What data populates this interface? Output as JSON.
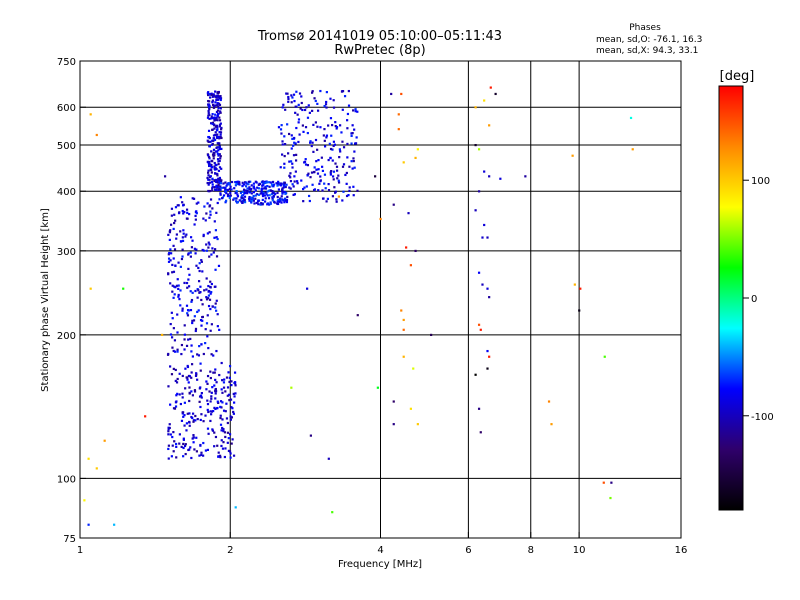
{
  "header": {
    "title": "Tromsø 20141019 05:10:00–05:11:43",
    "subtitle": "RwPretec (8p)"
  },
  "phase_box": {
    "heading": "Phases",
    "line_o": "mean, sd,O: -76.1, 16.3",
    "line_x": "mean, sd,X:  94.3, 33.1"
  },
  "colorbar": {
    "label": "[deg]",
    "range": [
      -180,
      180
    ],
    "ticks": [
      {
        "value": 100,
        "label": "100"
      },
      {
        "value": 0,
        "label": "0"
      },
      {
        "value": -100,
        "label": "-100"
      }
    ],
    "colors": [
      "#000000",
      "#2f006b",
      "#0000ff",
      "#00ffff",
      "#00ff00",
      "#ffff00",
      "#ff8800",
      "#ff0000"
    ]
  },
  "chart_data": {
    "type": "scatter",
    "title": "Tromsø 20141019 05:10:00–05:11:43",
    "subtitle": "RwPretec (8p)",
    "xlabel": "Frequency [MHz]",
    "ylabel": "Stationary phase Virtual Height [km]",
    "x_scale": "log",
    "y_scale": "log",
    "xlim": [
      1,
      16
    ],
    "ylim": [
      75,
      750
    ],
    "xticks": [
      1,
      2,
      4,
      6,
      8,
      10,
      16
    ],
    "xtick_labels": [
      "1",
      "2",
      "4",
      "6",
      "8",
      "10",
      "16"
    ],
    "yticks": [
      75,
      100,
      200,
      300,
      400,
      500,
      600,
      750
    ],
    "ytick_labels": [
      "75",
      "100",
      "200",
      "300",
      "400",
      "500",
      "600",
      "750"
    ],
    "xgrid": [
      2,
      4,
      6,
      8,
      10
    ],
    "ygrid": [
      100,
      200,
      300,
      400,
      500,
      600
    ],
    "echo_traces": [
      {
        "desc": "low-height band",
        "x_range": [
          1.5,
          2.05
        ],
        "y_range": [
          110,
          175
        ],
        "phase": -95
      },
      {
        "desc": "rising O-trace",
        "x_range": [
          1.5,
          1.9
        ],
        "y_range": [
          180,
          390
        ],
        "phase": -90
      },
      {
        "desc": "upper spike",
        "x_range": [
          1.8,
          1.92
        ],
        "y_range": [
          400,
          650
        ],
        "phase": -95
      },
      {
        "desc": "F-layer cusp",
        "x_range": [
          1.9,
          2.6
        ],
        "y_range": [
          375,
          420
        ],
        "phase": -80
      },
      {
        "desc": "rising F trace",
        "x_range": [
          2.5,
          3.6
        ],
        "y_range": [
          380,
          650
        ],
        "phase": -90
      }
    ],
    "scattered_points": [
      {
        "x": 1.05,
        "y": 580,
        "phase": 110
      },
      {
        "x": 1.08,
        "y": 525,
        "phase": 130
      },
      {
        "x": 1.05,
        "y": 250,
        "phase": 100
      },
      {
        "x": 1.22,
        "y": 250,
        "phase": 30
      },
      {
        "x": 1.35,
        "y": 135,
        "phase": 170
      },
      {
        "x": 1.12,
        "y": 120,
        "phase": 120
      },
      {
        "x": 1.04,
        "y": 110,
        "phase": 90
      },
      {
        "x": 1.08,
        "y": 105,
        "phase": 100
      },
      {
        "x": 1.02,
        "y": 90,
        "phase": 80
      },
      {
        "x": 1.04,
        "y": 80,
        "phase": -70
      },
      {
        "x": 1.17,
        "y": 80,
        "phase": -40
      },
      {
        "x": 1.46,
        "y": 200,
        "phase": 110
      },
      {
        "x": 1.48,
        "y": 430,
        "phase": -110
      },
      {
        "x": 2.05,
        "y": 87,
        "phase": -40
      },
      {
        "x": 2.65,
        "y": 155,
        "phase": 60
      },
      {
        "x": 2.9,
        "y": 123,
        "phase": -120
      },
      {
        "x": 3.15,
        "y": 110,
        "phase": -100
      },
      {
        "x": 3.2,
        "y": 85,
        "phase": 40
      },
      {
        "x": 2.85,
        "y": 250,
        "phase": -90
      },
      {
        "x": 3.6,
        "y": 220,
        "phase": -130
      },
      {
        "x": 3.3,
        "y": 390,
        "phase": 120
      },
      {
        "x": 3.9,
        "y": 430,
        "phase": -150
      },
      {
        "x": 4.0,
        "y": 350,
        "phase": 130
      },
      {
        "x": 3.95,
        "y": 155,
        "phase": 20
      },
      {
        "x": 4.2,
        "y": 640,
        "phase": -110
      },
      {
        "x": 4.4,
        "y": 640,
        "phase": 150
      },
      {
        "x": 4.35,
        "y": 580,
        "phase": 140
      },
      {
        "x": 4.35,
        "y": 540,
        "phase": 140
      },
      {
        "x": 4.45,
        "y": 460,
        "phase": 100
      },
      {
        "x": 4.75,
        "y": 490,
        "phase": 80
      },
      {
        "x": 4.7,
        "y": 470,
        "phase": 110
      },
      {
        "x": 4.25,
        "y": 375,
        "phase": -120
      },
      {
        "x": 4.55,
        "y": 360,
        "phase": -100
      },
      {
        "x": 4.5,
        "y": 305,
        "phase": 170
      },
      {
        "x": 4.7,
        "y": 300,
        "phase": -130
      },
      {
        "x": 4.6,
        "y": 280,
        "phase": 150
      },
      {
        "x": 4.4,
        "y": 225,
        "phase": 130
      },
      {
        "x": 4.45,
        "y": 215,
        "phase": 120
      },
      {
        "x": 4.45,
        "y": 205,
        "phase": 140
      },
      {
        "x": 5.05,
        "y": 200,
        "phase": -140
      },
      {
        "x": 4.45,
        "y": 180,
        "phase": 110
      },
      {
        "x": 4.65,
        "y": 170,
        "phase": 70
      },
      {
        "x": 4.6,
        "y": 140,
        "phase": 90
      },
      {
        "x": 4.25,
        "y": 145,
        "phase": -130
      },
      {
        "x": 4.25,
        "y": 130,
        "phase": -120
      },
      {
        "x": 4.75,
        "y": 130,
        "phase": 100
      },
      {
        "x": 6.2,
        "y": 600,
        "phase": 110
      },
      {
        "x": 6.45,
        "y": 620,
        "phase": 90
      },
      {
        "x": 6.65,
        "y": 660,
        "phase": 170
      },
      {
        "x": 6.8,
        "y": 640,
        "phase": -160
      },
      {
        "x": 6.6,
        "y": 550,
        "phase": 120
      },
      {
        "x": 6.2,
        "y": 500,
        "phase": -160
      },
      {
        "x": 6.3,
        "y": 490,
        "phase": 60
      },
      {
        "x": 6.45,
        "y": 440,
        "phase": -90
      },
      {
        "x": 6.6,
        "y": 430,
        "phase": -100
      },
      {
        "x": 6.95,
        "y": 425,
        "phase": -90
      },
      {
        "x": 6.3,
        "y": 400,
        "phase": -110
      },
      {
        "x": 6.2,
        "y": 365,
        "phase": -100
      },
      {
        "x": 6.45,
        "y": 340,
        "phase": -90
      },
      {
        "x": 6.4,
        "y": 320,
        "phase": -95
      },
      {
        "x": 6.55,
        "y": 320,
        "phase": -100
      },
      {
        "x": 6.3,
        "y": 270,
        "phase": -80
      },
      {
        "x": 6.4,
        "y": 255,
        "phase": -100
      },
      {
        "x": 6.55,
        "y": 250,
        "phase": -90
      },
      {
        "x": 6.6,
        "y": 240,
        "phase": -110
      },
      {
        "x": 6.3,
        "y": 210,
        "phase": 150
      },
      {
        "x": 6.35,
        "y": 205,
        "phase": 170
      },
      {
        "x": 6.55,
        "y": 185,
        "phase": -80
      },
      {
        "x": 6.6,
        "y": 180,
        "phase": 170
      },
      {
        "x": 6.55,
        "y": 170,
        "phase": -170
      },
      {
        "x": 6.2,
        "y": 165,
        "phase": -190
      },
      {
        "x": 6.3,
        "y": 140,
        "phase": -120
      },
      {
        "x": 6.35,
        "y": 125,
        "phase": -130
      },
      {
        "x": 7.8,
        "y": 430,
        "phase": -110
      },
      {
        "x": 8.7,
        "y": 145,
        "phase": 130
      },
      {
        "x": 8.8,
        "y": 130,
        "phase": 120
      },
      {
        "x": 9.7,
        "y": 475,
        "phase": 120
      },
      {
        "x": 9.8,
        "y": 255,
        "phase": 110
      },
      {
        "x": 10.05,
        "y": 250,
        "phase": 170
      },
      {
        "x": 10.0,
        "y": 225,
        "phase": -170
      },
      {
        "x": 11.25,
        "y": 180,
        "phase": 40
      },
      {
        "x": 11.2,
        "y": 98,
        "phase": 150
      },
      {
        "x": 11.6,
        "y": 98,
        "phase": -120
      },
      {
        "x": 11.55,
        "y": 91,
        "phase": 50
      },
      {
        "x": 12.7,
        "y": 570,
        "phase": -20
      },
      {
        "x": 12.8,
        "y": 490,
        "phase": 120
      }
    ]
  }
}
